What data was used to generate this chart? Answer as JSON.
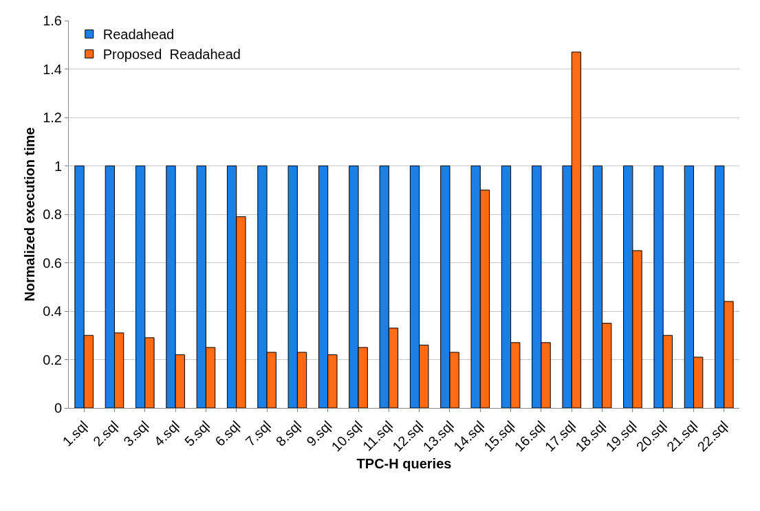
{
  "chart_data": {
    "type": "bar",
    "xlabel": "TPC-H queries",
    "ylabel": "Normalized execution time",
    "categories": [
      "1.sql",
      "2.sql",
      "3.sql",
      "4.sql",
      "5.sql",
      "6.sql",
      "7.sql",
      "8.sql",
      "9.sql",
      "10.sql",
      "11.sql",
      "12.sql",
      "13.sql",
      "14.sql",
      "15.sql",
      "16.sql",
      "17.sql",
      "18.sql",
      "19.sql",
      "20.sql",
      "21.sql",
      "22.sql"
    ],
    "series": [
      {
        "name": "Readahead",
        "color": "#1a7fe6",
        "values": [
          1,
          1,
          1,
          1,
          1,
          1,
          1,
          1,
          1,
          1,
          1,
          1,
          1,
          1,
          1,
          1,
          1,
          1,
          1,
          1,
          1,
          1
        ]
      },
      {
        "name": "Proposed  Readahead",
        "color": "#ff6a13",
        "values": [
          0.3,
          0.31,
          0.29,
          0.22,
          0.25,
          0.79,
          0.23,
          0.23,
          0.22,
          0.25,
          0.33,
          0.26,
          0.23,
          0.9,
          0.27,
          0.27,
          1.47,
          0.35,
          0.65,
          0.3,
          0.21,
          0.44
        ]
      }
    ],
    "ylim": [
      0,
      1.6
    ],
    "yticks": [
      0,
      0.2,
      0.4,
      0.6,
      0.8,
      1,
      1.2,
      1.4,
      1.6
    ],
    "grid": "y",
    "legend": "top left"
  }
}
